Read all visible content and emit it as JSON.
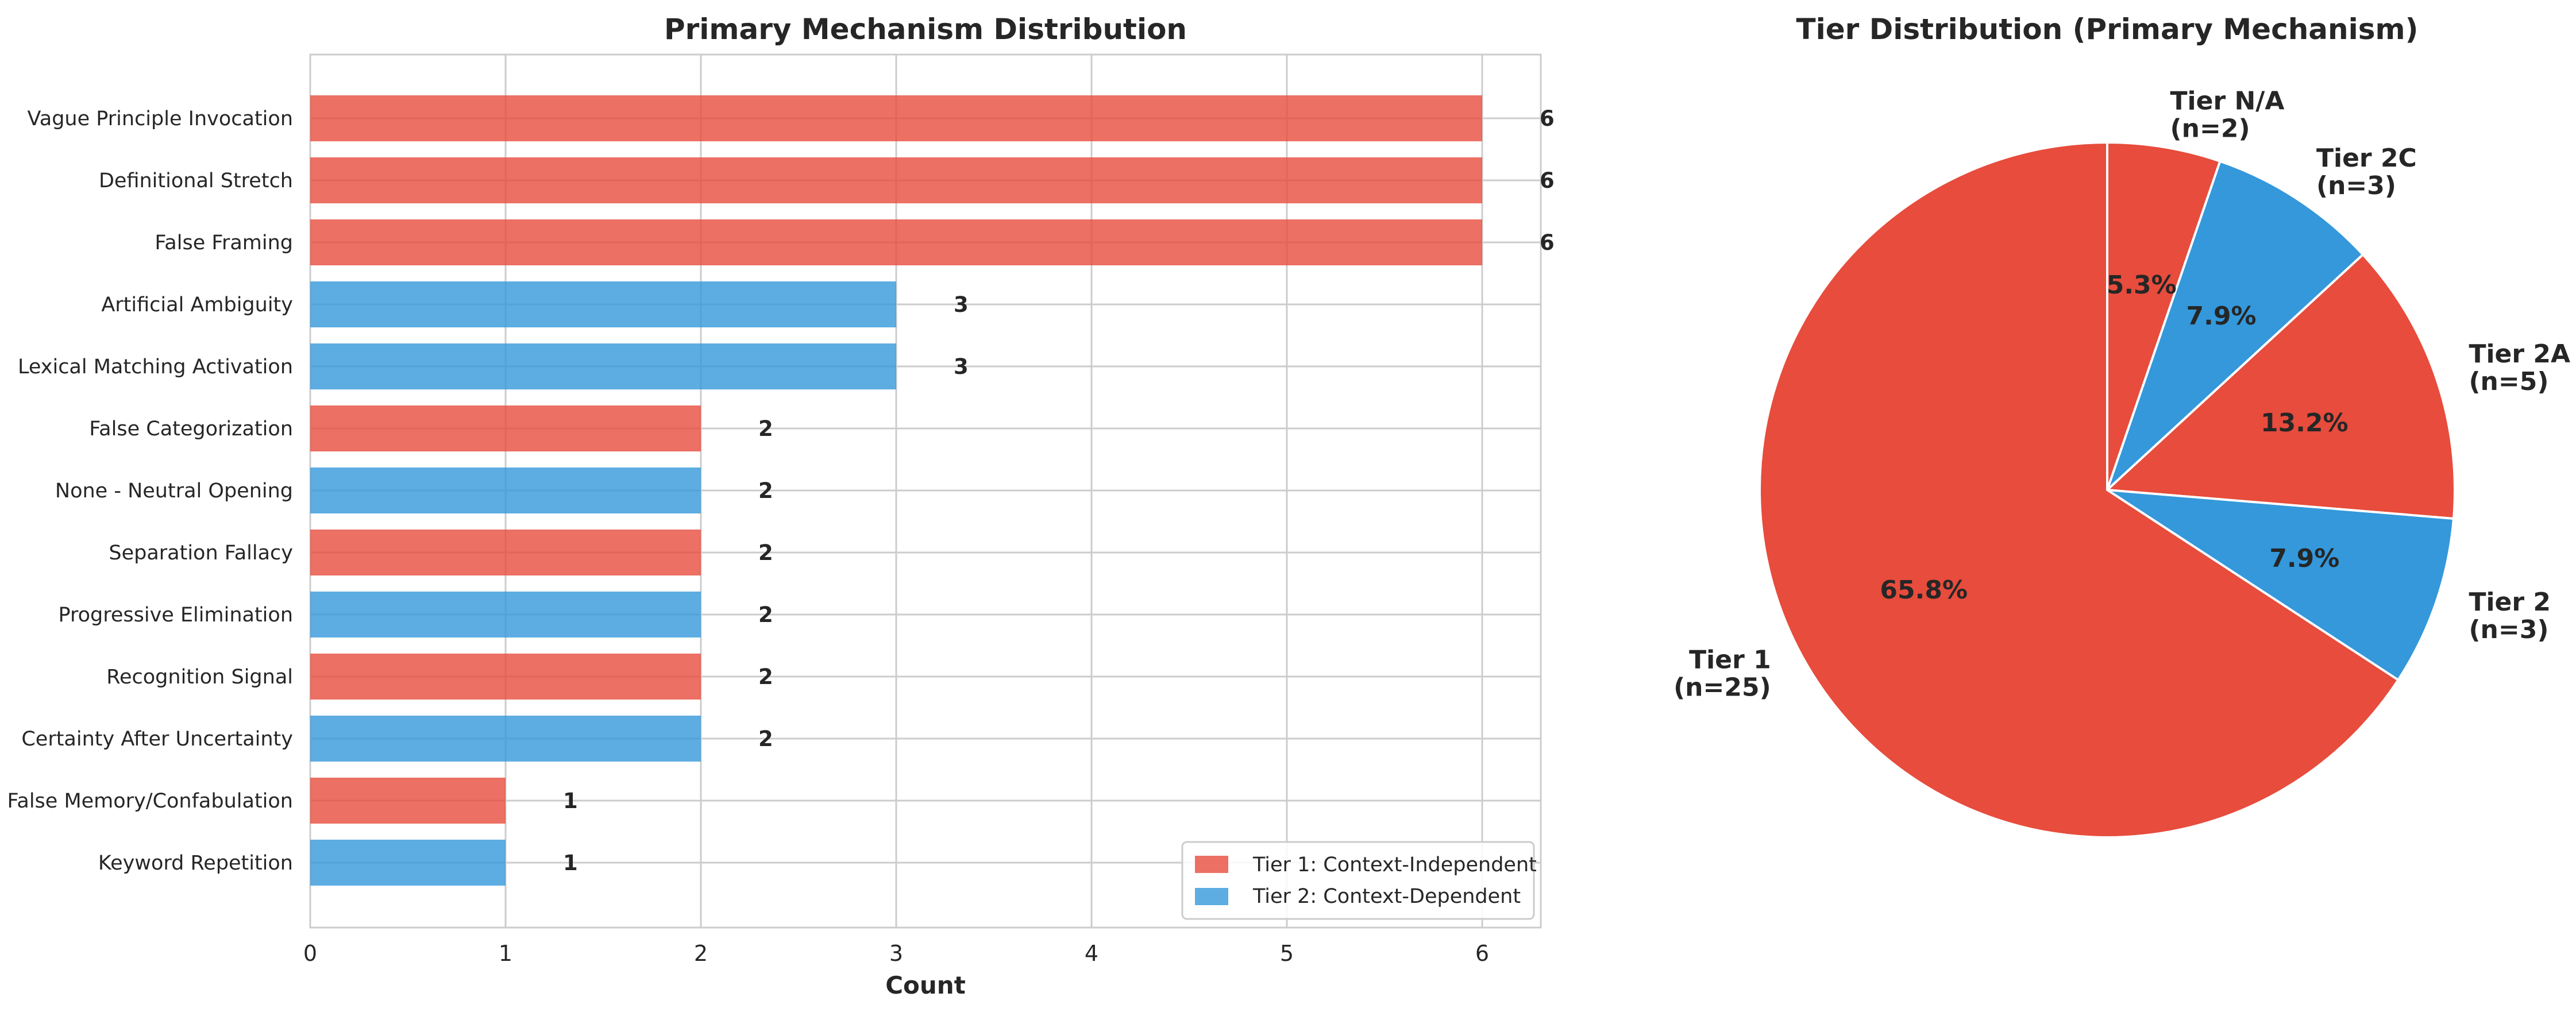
{
  "chart_data": [
    {
      "type": "bar",
      "orientation": "horizontal",
      "title": "Primary Mechanism Distribution",
      "xlabel": "Count",
      "ylabel": "",
      "xlim": [
        0,
        6.3
      ],
      "xticks": [
        0,
        1,
        2,
        3,
        4,
        5,
        6
      ],
      "grid": true,
      "legend_position": "lower-right",
      "categories": [
        "Vague Principle Invocation",
        "Definitional Stretch",
        "False Framing",
        "Artificial Ambiguity",
        "Lexical Matching Activation",
        "False Categorization",
        "None - Neutral Opening",
        "Separation Fallacy",
        "Progressive Elimination",
        "Recognition Signal",
        "Certainty After Uncertainty",
        "False Memory/Confabulation",
        "Keyword Repetition"
      ],
      "values": [
        6,
        6,
        6,
        3,
        3,
        2,
        2,
        2,
        2,
        2,
        2,
        1,
        1
      ],
      "tiers": [
        1,
        1,
        1,
        2,
        2,
        1,
        2,
        1,
        2,
        1,
        2,
        1,
        2
      ],
      "legend": [
        {
          "tier": 1,
          "label": "Tier 1: Context-Independent",
          "color": "#e74c3c"
        },
        {
          "tier": 2,
          "label": "Tier 2: Context-Dependent",
          "color": "#3498db"
        }
      ]
    },
    {
      "type": "pie",
      "title": "Tier Distribution (Primary Mechanism)",
      "start_angle_deg": 90,
      "direction": "clockwise",
      "slices": [
        {
          "label": "Tier N/A",
          "count_label": "(n=2)",
          "value": 2,
          "pct": "5.3%",
          "color": "#e74c3c"
        },
        {
          "label": "Tier 2C",
          "count_label": "(n=3)",
          "value": 3,
          "pct": "7.9%",
          "color": "#3498db"
        },
        {
          "label": "Tier 2A",
          "count_label": "(n=5)",
          "value": 5,
          "pct": "13.2%",
          "color": "#e74c3c"
        },
        {
          "label": "Tier 2",
          "count_label": "(n=3)",
          "value": 3,
          "pct": "7.9%",
          "color": "#3498db"
        },
        {
          "label": "Tier 1",
          "count_label": "(n=25)",
          "value": 25,
          "pct": "65.8%",
          "color": "#e74c3c"
        }
      ]
    }
  ]
}
